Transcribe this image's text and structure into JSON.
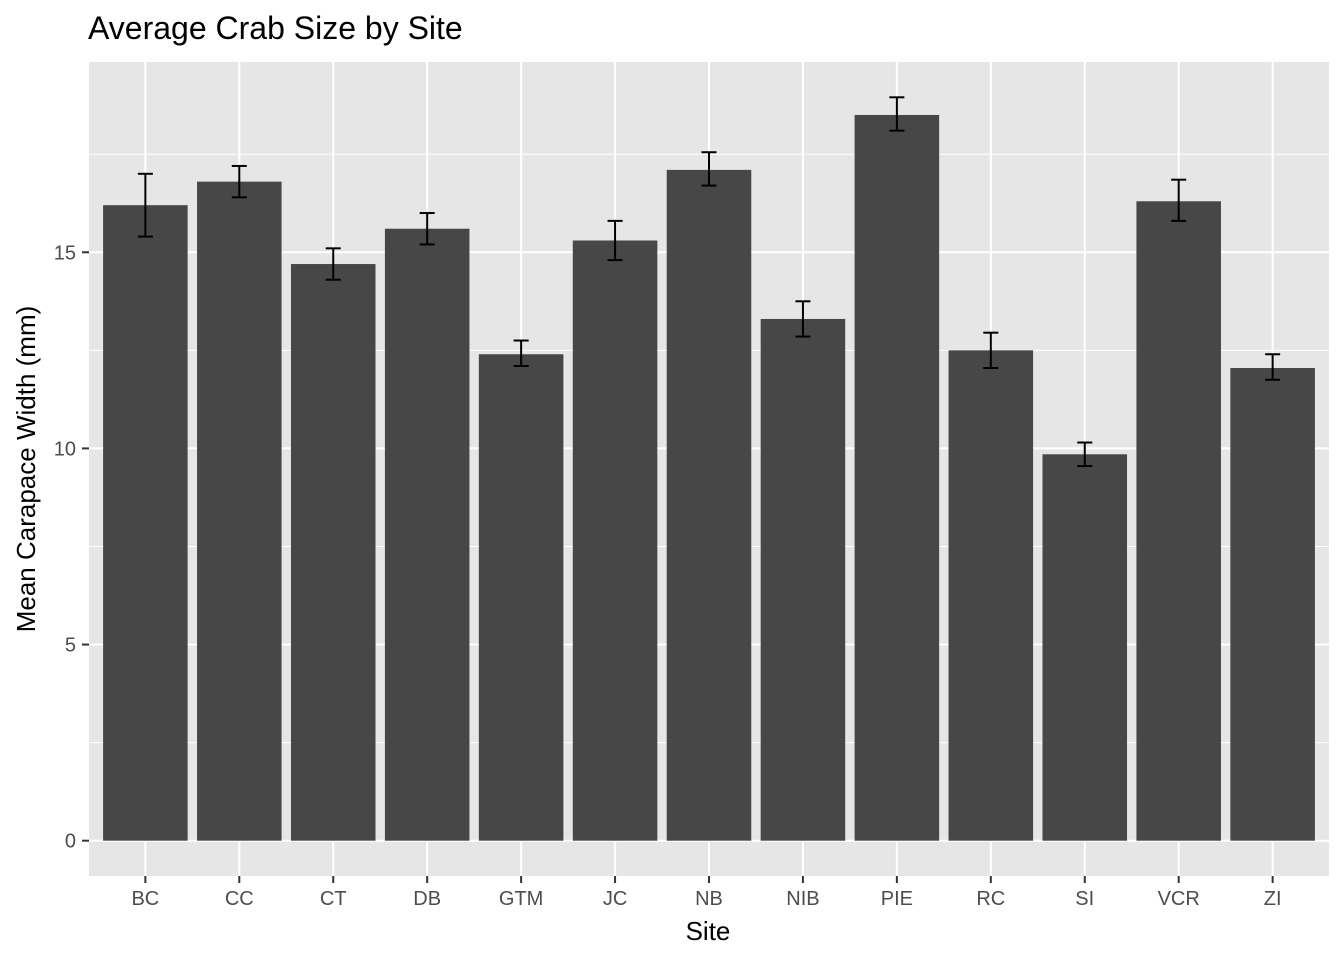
{
  "chart_data": {
    "type": "bar",
    "title": "Average Crab Size by Site",
    "xlabel": "Site",
    "ylabel": "Mean Carapace Width (mm)",
    "categories": [
      "BC",
      "CC",
      "CT",
      "DB",
      "GTM",
      "JC",
      "NB",
      "NIB",
      "PIE",
      "RC",
      "SI",
      "VCR",
      "ZI"
    ],
    "values": [
      16.2,
      16.8,
      14.7,
      15.6,
      12.4,
      15.3,
      17.1,
      13.3,
      18.5,
      12.5,
      9.85,
      16.3,
      12.05
    ],
    "error_low": [
      15.4,
      16.4,
      14.3,
      15.2,
      12.1,
      14.8,
      16.7,
      12.85,
      18.1,
      12.05,
      9.55,
      15.8,
      11.75
    ],
    "error_high": [
      17.0,
      17.2,
      15.1,
      16.0,
      12.75,
      15.8,
      17.55,
      13.75,
      18.95,
      12.95,
      10.15,
      16.85,
      12.4
    ],
    "ylim": [
      -0.9,
      19.85
    ],
    "yticks": [
      0,
      5,
      10,
      15
    ],
    "y_minor_ticks": [
      2.5,
      7.5,
      12.5,
      17.5
    ],
    "grid": true,
    "colors": {
      "panel": "#e6e6e6",
      "grid": "#ffffff",
      "bar": "#474747",
      "errorbar": "#000000",
      "tick": "#333333"
    }
  }
}
